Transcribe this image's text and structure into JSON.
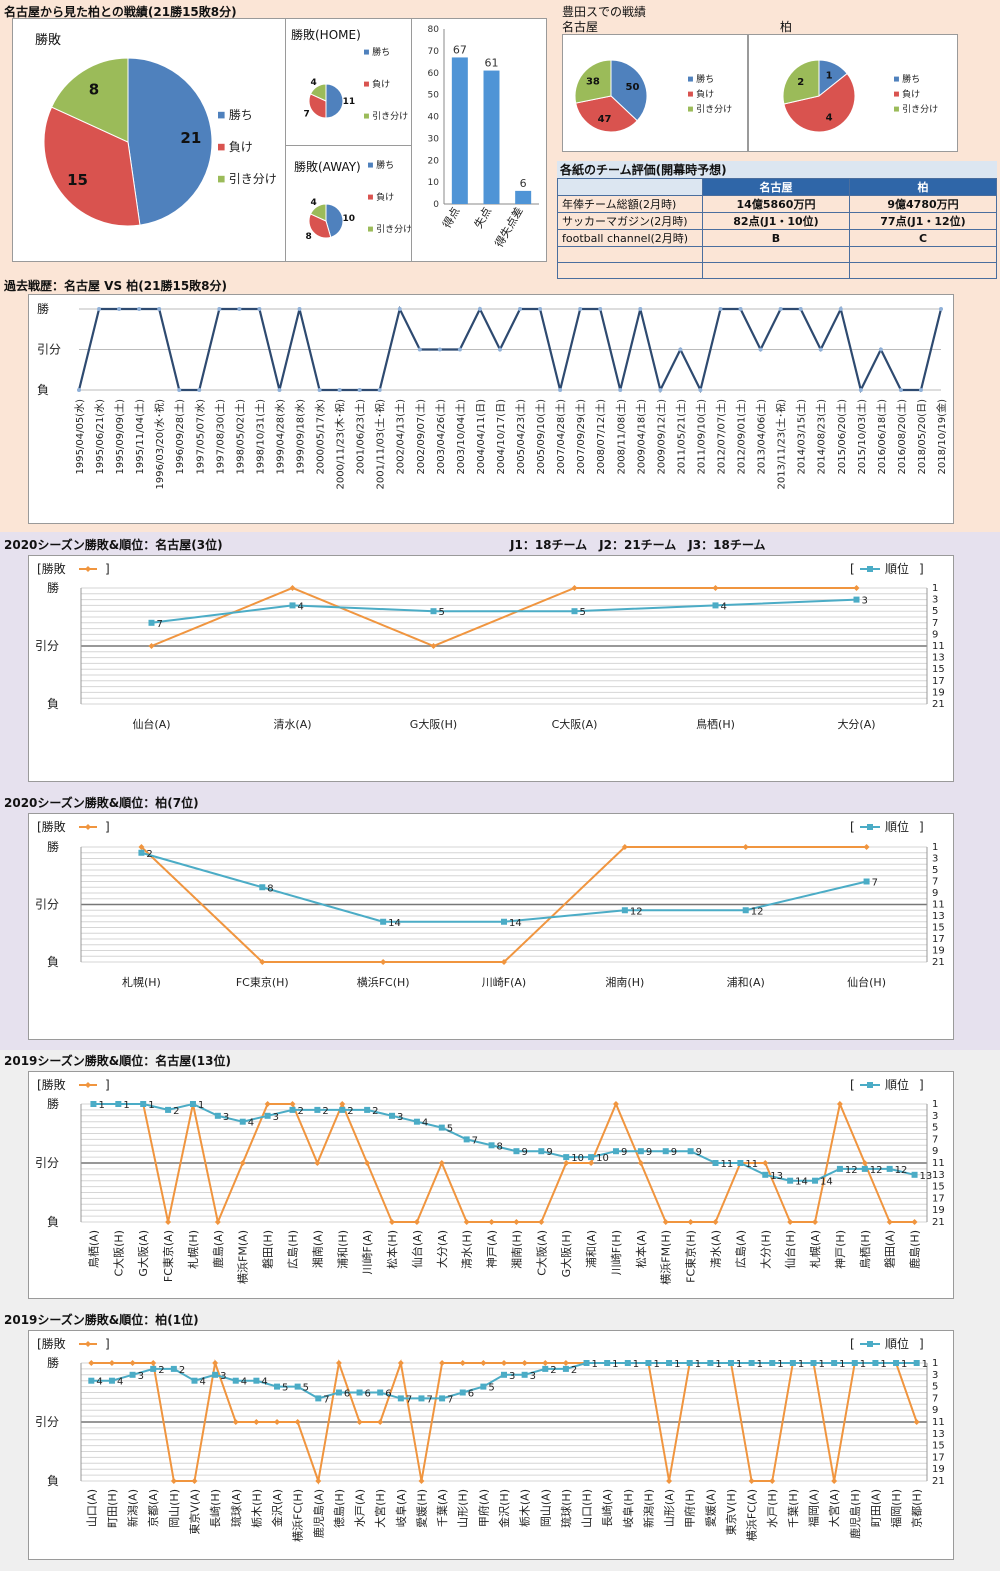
{
  "colors": {
    "win": "#4f81bd",
    "loss": "#d9534f",
    "draw": "#9bbb59",
    "line": "#2e4a70",
    "orange": "#f0953f",
    "teal": "#4bacc6",
    "bar": "#4f94d6",
    "band1": "#fbe5d6",
    "band2": "#e6e1ee",
    "band3": "#efefef"
  },
  "header": {
    "title": "名古屋から見た柏との戦績(21勝15敗8分)",
    "toyota_title": "豊田スでの戦績",
    "toyota_nagoya": "名古屋",
    "toyota_kashiwa": "柏",
    "record_title": "過去戦歴：名古屋 VS 柏(21勝15敗8分)",
    "s2020_nagoya_title": "2020シーズン勝敗&順位：名古屋(3位)",
    "league_info": "J1：18チーム　J2：21チーム　J3：18チーム",
    "s2020_kashiwa_title": "2020シーズン勝敗&順位：柏(7位)",
    "s2019_nagoya_title": "2019シーズン勝敗&順位：名古屋(13位)",
    "s2019_kashiwa_title": "2019シーズン勝敗&順位：柏(1位)"
  },
  "legend": {
    "win": "勝ち",
    "loss": "負け",
    "draw": "引き分け",
    "win_loss": "[勝敗",
    "rank": "順位",
    "bracket_close": "]",
    "bracket_open": "["
  },
  "evaluation": {
    "title": "各紙のチーム評価(開幕時予想)",
    "headers": [
      "",
      "名古屋",
      "柏"
    ],
    "rows": [
      {
        "label": "年俸チーム総額(2月時)",
        "nagoya": "14億5860万円",
        "kashiwa": "9億4780万円"
      },
      {
        "label": "サッカーマガジン(2月時)",
        "nagoya": "82点(J1・10位)",
        "kashiwa": "77点(J1・12位)"
      },
      {
        "label": "football channel(2月時)",
        "nagoya": "B",
        "kashiwa": "C"
      },
      {
        "label": "",
        "nagoya": "",
        "kashiwa": ""
      },
      {
        "label": "",
        "nagoya": "",
        "kashiwa": ""
      }
    ]
  },
  "chart_data": [
    {
      "id": "total-pie",
      "type": "pie",
      "title": "勝敗",
      "categories": [
        "勝ち",
        "負け",
        "引き分け"
      ],
      "values": [
        21,
        15,
        8
      ]
    },
    {
      "id": "home-pie",
      "type": "pie",
      "title": "勝敗(HOME)",
      "categories": [
        "勝ち",
        "負け",
        "引き分け"
      ],
      "values": [
        11,
        7,
        4
      ]
    },
    {
      "id": "away-pie",
      "type": "pie",
      "title": "勝敗(AWAY)",
      "categories": [
        "勝ち",
        "負け",
        "引き分け"
      ],
      "values": [
        10,
        8,
        4
      ]
    },
    {
      "id": "goals-bar",
      "type": "bar",
      "categories": [
        "得点",
        "失点",
        "得失点差"
      ],
      "values": [
        67,
        61,
        6
      ],
      "ylim": [
        0,
        80
      ],
      "ticks": [
        0,
        10,
        20,
        30,
        40,
        50,
        60,
        70,
        80
      ]
    },
    {
      "id": "toyota-nagoya-pie",
      "type": "pie",
      "categories": [
        "勝ち",
        "負け",
        "引き分け"
      ],
      "values": [
        50,
        47,
        38
      ]
    },
    {
      "id": "toyota-kashiwa-pie",
      "type": "pie",
      "categories": [
        "勝ち",
        "負け",
        "引き分け"
      ],
      "values": [
        1,
        4,
        2
      ]
    },
    {
      "id": "history-line",
      "type": "line",
      "y_labels": [
        "勝",
        "引分",
        "負"
      ],
      "categories": [
        "1995/04/05(水)",
        "1995/06/21(水)",
        "1995/09/09(土)",
        "1995/11/04(土)",
        "1996/03/20(水･祝)",
        "1996/09/28(土)",
        "1997/05/07(水)",
        "1997/08/30(土)",
        "1998/05/02(土)",
        "1998/10/31(土)",
        "1999/04/28(水)",
        "1999/09/18(水)",
        "2000/05/17(水)",
        "2000/11/23(木･祝)",
        "2001/06/23(土)",
        "2001/11/03(土･祝)",
        "2002/04/13(土)",
        "2002/09/07(土)",
        "2003/04/26(土)",
        "2003/10/04(土)",
        "2004/04/11(日)",
        "2004/10/17(日)",
        "2005/04/23(土)",
        "2005/09/10(土)",
        "2007/04/28(土)",
        "2007/09/29(土)",
        "2008/07/12(土)",
        "2008/11/08(土)",
        "2009/04/18(土)",
        "2009/09/12(土)",
        "2011/05/21(土)",
        "2011/09/10(土)",
        "2012/07/07(土)",
        "2012/09/01(土)",
        "2013/04/06(土)",
        "2013/11/23(土･祝)",
        "2014/03/15(土)",
        "2014/08/23(土)",
        "2015/06/20(土)",
        "2015/10/03(土)",
        "2016/06/18(土)",
        "2016/08/20(土)",
        "2018/05/20(日)",
        "2018/10/19(金)"
      ],
      "values": [
        0,
        2,
        2,
        2,
        2,
        0,
        0,
        2,
        2,
        2,
        0,
        2,
        0,
        0,
        0,
        0,
        2,
        1,
        1,
        1,
        2,
        1,
        2,
        2,
        0,
        2,
        2,
        0,
        2,
        0,
        1,
        0,
        2,
        2,
        1,
        2,
        2,
        1,
        2,
        0,
        1,
        0,
        0,
        2
      ]
    },
    {
      "id": "s2020-nagoya",
      "type": "line",
      "categories": [
        "仙台(A)",
        "清水(A)",
        "G大阪(H)",
        "C大阪(A)",
        "鳥栖(H)",
        "大分(A)"
      ],
      "result": [
        1,
        2,
        1,
        2,
        2,
        2
      ],
      "rank": [
        7,
        4,
        5,
        5,
        4,
        3
      ],
      "rank_labels": [
        "1",
        "3",
        "5",
        "7",
        "9",
        "11",
        "13",
        "15",
        "17",
        "19",
        "21"
      ],
      "y_labels": [
        "勝",
        "引分",
        "負"
      ]
    },
    {
      "id": "s2020-kashiwa",
      "type": "line",
      "categories": [
        "札幌(H)",
        "FC東京(H)",
        "横浜FC(H)",
        "川崎F(A)",
        "湘南(H)",
        "浦和(A)",
        "仙台(H)"
      ],
      "result": [
        2,
        0,
        0,
        0,
        2,
        2,
        2
      ],
      "rank": [
        2,
        8,
        14,
        14,
        12,
        12,
        7
      ],
      "rank_labels": [
        "1",
        "3",
        "5",
        "7",
        "9",
        "11",
        "13",
        "15",
        "17",
        "19",
        "21"
      ],
      "y_labels": [
        "勝",
        "引分",
        "負"
      ]
    },
    {
      "id": "s2019-nagoya",
      "type": "line",
      "categories": [
        "鳥栖(A)",
        "C大阪(H)",
        "G大阪(A)",
        "FC東京(A)",
        "札幌(H)",
        "鹿島(A)",
        "横浜FM(A)",
        "磐田(H)",
        "広島(H)",
        "湘南(A)",
        "浦和(H)",
        "川崎F(A)",
        "松本(H)",
        "仙台(A)",
        "大分(A)",
        "清水(H)",
        "神戸(A)",
        "湘南(H)",
        "C大阪(A)",
        "G大阪(H)",
        "浦和(A)",
        "川崎F(H)",
        "松本(A)",
        "横浜FM(H)",
        "FC東京(H)",
        "清水(A)",
        "広島(A)",
        "大分(H)",
        "仙台(H)",
        "札幌(A)",
        "神戸(H)",
        "鳥栖(H)",
        "磐田(A)",
        "鹿島(H)"
      ],
      "result": [
        2,
        2,
        2,
        0,
        2,
        0,
        1,
        2,
        2,
        1,
        2,
        1,
        0,
        0,
        1,
        0,
        0,
        0,
        0,
        1,
        1,
        2,
        1,
        0,
        0,
        0,
        1,
        1,
        0,
        0,
        2,
        1,
        0,
        0
      ],
      "rank": [
        1,
        1,
        1,
        2,
        1,
        3,
        4,
        3,
        2,
        2,
        2,
        2,
        3,
        4,
        5,
        7,
        8,
        9,
        9,
        10,
        10,
        9,
        9,
        9,
        9,
        11,
        11,
        13,
        14,
        14,
        12,
        12,
        12,
        13
      ],
      "rank_labels": [
        "1",
        "3",
        "5",
        "7",
        "9",
        "11",
        "13",
        "15",
        "17",
        "19",
        "21"
      ],
      "y_labels": [
        "勝",
        "引分",
        "負"
      ]
    },
    {
      "id": "s2019-kashiwa",
      "type": "line",
      "categories": [
        "山口(A)",
        "町田(H)",
        "新潟(A)",
        "京都(A)",
        "岡山(H)",
        "東京V(A)",
        "長崎(H)",
        "琉球(A)",
        "栃木(H)",
        "金沢(A)",
        "横浜FC(H)",
        "鹿児島(A)",
        "徳島(H)",
        "水戸(A)",
        "大宮(H)",
        "岐阜(A)",
        "愛媛(H)",
        "千葉(A)",
        "山形(H)",
        "甲府(A)",
        "金沢(H)",
        "栃木(A)",
        "岡山(A)",
        "琉球(H)",
        "山口(H)",
        "長崎(A)",
        "岐阜(H)",
        "新潟(H)",
        "山形(A)",
        "甲府(H)",
        "愛媛(A)",
        "東京V(H)",
        "横浜FC(A)",
        "水戸(H)",
        "千葉(H)",
        "福岡(A)",
        "大宮(A)",
        "鹿児島(H)",
        "町田(A)",
        "福岡(H)",
        "京都(H)"
      ],
      "result": [
        2,
        2,
        2,
        2,
        0,
        0,
        2,
        1,
        1,
        1,
        1,
        0,
        2,
        1,
        1,
        2,
        0,
        2,
        2,
        2,
        2,
        2,
        2,
        2,
        2,
        2,
        2,
        2,
        0,
        2,
        2,
        2,
        0,
        0,
        2,
        2,
        0,
        2,
        2,
        2,
        1
      ],
      "rank": [
        4,
        4,
        3,
        2,
        2,
        4,
        3,
        4,
        4,
        5,
        5,
        7,
        6,
        6,
        6,
        7,
        7,
        7,
        6,
        5,
        3,
        3,
        2,
        2,
        1,
        1,
        1,
        1,
        1,
        1,
        1,
        1,
        1,
        1,
        1,
        1,
        1,
        1,
        1,
        1,
        1
      ],
      "rank_labels": [
        "1",
        "3",
        "5",
        "7",
        "9",
        "11",
        "13",
        "15",
        "17",
        "19",
        "21"
      ],
      "y_labels": [
        "勝",
        "引分",
        "負"
      ]
    }
  ]
}
